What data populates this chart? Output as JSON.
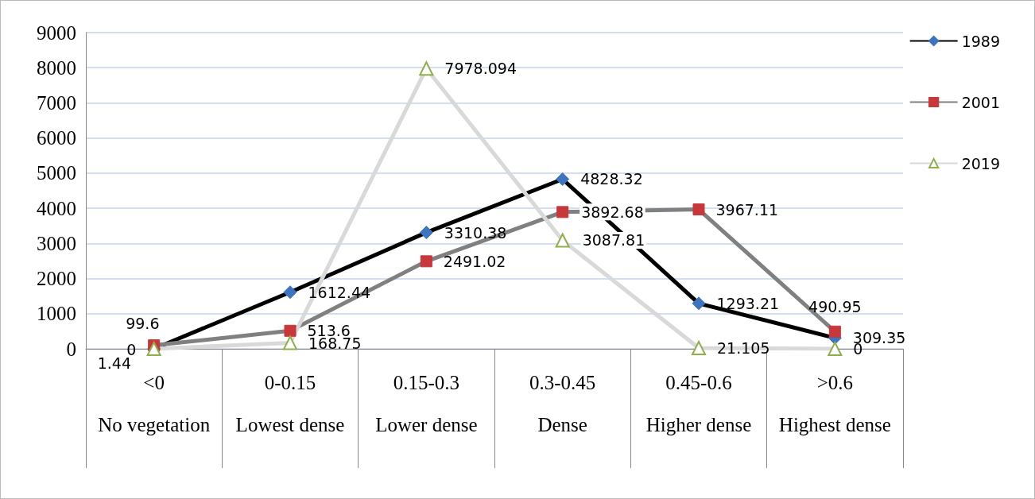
{
  "chart_data": {
    "type": "line",
    "categories": [
      "<0\nNo vegetation",
      "0-0.15\nLowest dense",
      "0.15-0.3\nLower dense",
      "0.3-0.45\nDense",
      "0.45-0.6\nHigher dense",
      ">0.6\nHighest dense"
    ],
    "series": [
      {
        "name": "1989",
        "color": "#000000",
        "colors": [
          "#3c74bf",
          "#3c74bf",
          "#3c74bf",
          "#3c74bf",
          "#3c74bf",
          "#3c74bf"
        ],
        "marker": "diamond",
        "values": [
          0,
          1612.44,
          3310.38,
          4828.32,
          1293.21,
          309.35
        ]
      },
      {
        "name": "2001",
        "color": "#808080",
        "colors": [
          "#c8373a",
          "#c8373a",
          "#c8373a",
          "#c8373a",
          "#c8373a",
          "#c8373a"
        ],
        "marker": "square",
        "values": [
          99.6,
          513.6,
          2491.02,
          3892.68,
          3967.11,
          490.95
        ]
      },
      {
        "name": "2019",
        "color": "#d9d9d9",
        "colors": [
          "#8db04b",
          "#8db04b",
          "#8db04b",
          "#8db04b",
          "#8db04b",
          "#8db04b"
        ],
        "marker": "triangle",
        "values": [
          1.44,
          168.75,
          7978.094,
          3087.81,
          21.105,
          0
        ]
      }
    ],
    "ylim": [
      0,
      9000
    ],
    "yticks": [
      0,
      1000,
      2000,
      3000,
      4000,
      5000,
      6000,
      7000,
      8000,
      9000
    ],
    "grid": "y",
    "legend": "right",
    "data_labels": true
  }
}
